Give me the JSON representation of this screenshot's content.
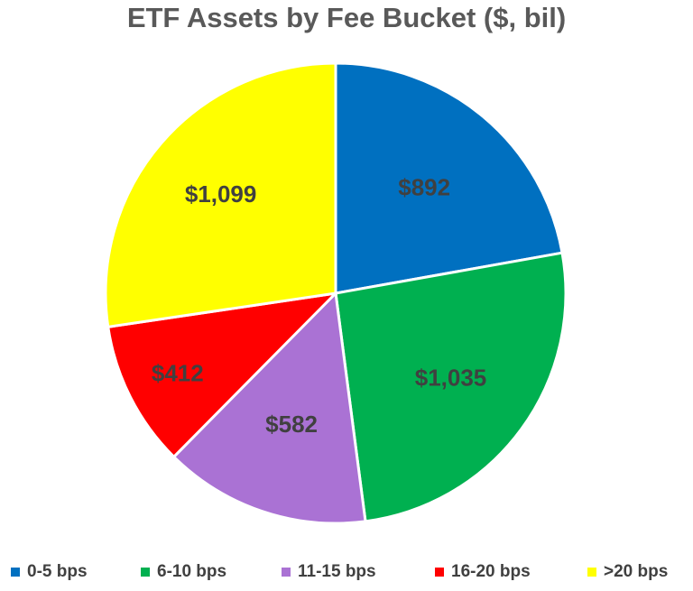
{
  "chart_data": {
    "type": "pie",
    "title": "ETF Assets by Fee Bucket ($, bil)",
    "categories": [
      "0-5 bps",
      "6-10 bps",
      "11-15 bps",
      "16-20 bps",
      ">20 bps"
    ],
    "values": [
      892,
      1035,
      582,
      412,
      1099
    ],
    "data_labels": [
      "$892",
      "$1,035",
      "$582",
      "$412",
      "$1,099"
    ],
    "colors": [
      "#0070C0",
      "#00B050",
      "#AA72D4",
      "#FF0000",
      "#FFFF00"
    ],
    "start_angle": "12 o'clock",
    "direction": "clockwise",
    "legend": "bottom"
  }
}
